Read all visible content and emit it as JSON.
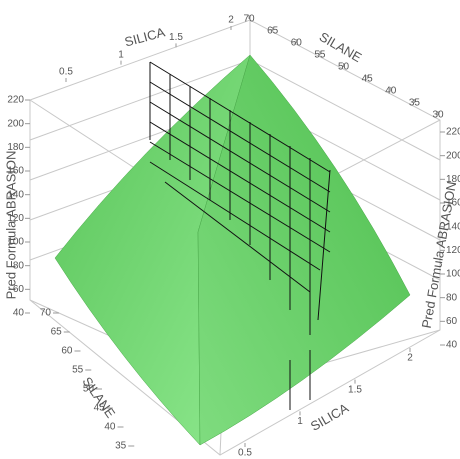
{
  "chart_data": {
    "type": "surface",
    "x_label": "SILICA",
    "y_label": "SILANE",
    "z_label": "Pred Formula ABRASION",
    "xticks": [
      0.5,
      1,
      1.5,
      2
    ],
    "yticks": [
      30,
      35,
      40,
      45,
      50,
      55,
      60,
      65,
      70
    ],
    "zticks": [
      40,
      60,
      80,
      100,
      120,
      140,
      160,
      180,
      200,
      220
    ],
    "color": "#5ccc5c"
  }
}
